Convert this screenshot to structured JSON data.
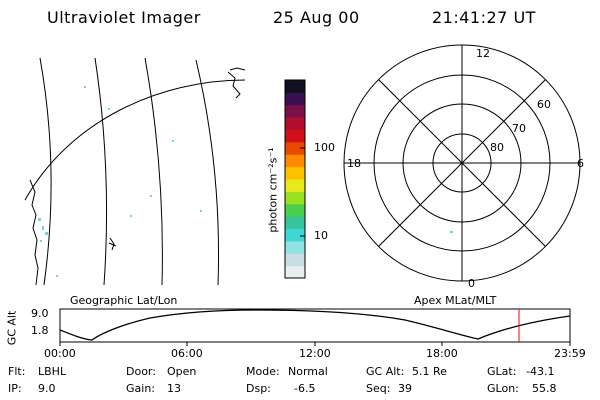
{
  "header": {
    "instrument": "Ultraviolet Imager",
    "date": "25 Aug 00",
    "time": "21:41:27 UT"
  },
  "colorbar": {
    "unit_label": "photon cm⁻²s⁻¹",
    "tick_100": "100",
    "tick_10": "10",
    "colors": [
      "#e8eef0",
      "#c8dde2",
      "#8fe3e3",
      "#3fd6d6",
      "#38c49a",
      "#4ccf4c",
      "#9be01f",
      "#e8e81a",
      "#ffc000",
      "#ff8a00",
      "#e84a00",
      "#d0101a",
      "#b0102e",
      "#7a1048",
      "#3a1050",
      "#101020"
    ]
  },
  "map": {
    "left_label": "Geographic Lat/Lon",
    "right_label": "Apex MLat/MLT"
  },
  "polar": {
    "mlt_12": "12",
    "mlt_18": "18",
    "mlt_6": "6",
    "mlt_0": "0",
    "lat_60": "60",
    "lat_70": "70",
    "lat_80": "80"
  },
  "altitude_plot": {
    "axis_label": "GC Alt",
    "y_max": "9.0",
    "y_min": "1.8",
    "x_ticks": [
      "00:00",
      "06:00",
      "12:00",
      "18:00",
      "23:59"
    ],
    "current_time_marker_color": "#ff0000"
  },
  "status": {
    "flt_label": "Flt:",
    "flt_value": "LBHL",
    "ip_label": "IP:",
    "ip_value": "9.0",
    "door_label": "Door:",
    "door_value": "Open",
    "gain_label": "Gain:",
    "gain_value": "13",
    "mode_label": "Mode:",
    "mode_value": "Normal",
    "dsp_label": "Dsp:",
    "dsp_value": "-6.5",
    "gcalt_label": "GC Alt:",
    "gcalt_value": "5.1 Re",
    "seq_label": "Seq:",
    "seq_value": "39",
    "glat_label": "GLat:",
    "glat_value": "-43.1",
    "glon_label": "GLon:",
    "glon_value": "55.8"
  }
}
